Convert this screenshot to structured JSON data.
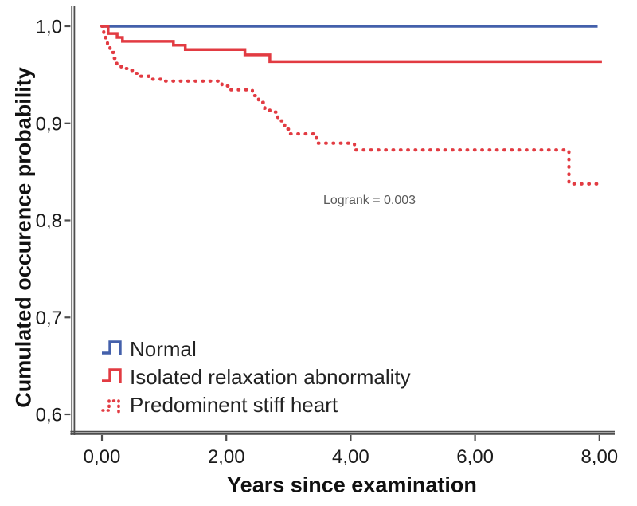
{
  "chart_data": {
    "type": "line",
    "subtype": "kaplan-meier-step",
    "title": "",
    "xlabel": "Years since examination",
    "ylabel": "Cumulated occurence probability",
    "annotation": "Logrank = 0.003",
    "grid": false,
    "legend_position": "lower-left",
    "xlim": [
      -0.45,
      8.25
    ],
    "ylim": [
      0.58,
      1.02
    ],
    "x_ticks": {
      "values": [
        0,
        2,
        4,
        6,
        8
      ],
      "labels": [
        "0,00",
        "2,00",
        "4,00",
        "6,00",
        "8,00"
      ]
    },
    "y_ticks": {
      "values": [
        1.0,
        0.9,
        0.8,
        0.7,
        0.6
      ],
      "labels": [
        "1,0",
        "0,9",
        "0,8",
        "0,7",
        "0,6"
      ]
    },
    "colors": {
      "normal": "#4460ab",
      "abnormal": "#e23b42",
      "axis": "#4d4d4d",
      "text": "#1a1a1a",
      "annotation": "#5a5a5a"
    },
    "series": [
      {
        "id": "normal",
        "name": "Normal",
        "style": "solid",
        "color_key": "normal",
        "steps": [
          [
            0,
            1.0
          ],
          [
            7.97,
            1.0
          ]
        ]
      },
      {
        "id": "isolated-relaxation-abnormality",
        "name": "Isolated relaxation abnormality",
        "style": "solid",
        "color_key": "abnormal",
        "steps": [
          [
            0,
            1.0
          ],
          [
            0.1,
            0.9925
          ],
          [
            0.245,
            0.9885
          ],
          [
            0.33,
            0.9845
          ],
          [
            1.15,
            0.9805
          ],
          [
            1.34,
            0.976
          ],
          [
            2.3,
            0.9705
          ],
          [
            2.7,
            0.9635
          ],
          [
            8.04,
            0.9635
          ]
        ]
      },
      {
        "id": "predominent-stiff-heart",
        "name": "Predominent stiff heart",
        "style": "dotted",
        "color_key": "abnormal",
        "steps": [
          [
            0,
            1.0
          ],
          [
            0.03,
            0.993
          ],
          [
            0.06,
            0.986
          ],
          [
            0.09,
            0.979
          ],
          [
            0.13,
            0.973
          ],
          [
            0.18,
            0.967
          ],
          [
            0.24,
            0.961
          ],
          [
            0.31,
            0.9565
          ],
          [
            0.42,
            0.9545
          ],
          [
            0.52,
            0.9515
          ],
          [
            0.62,
            0.9485
          ],
          [
            0.75,
            0.9455
          ],
          [
            0.95,
            0.9435
          ],
          [
            1.93,
            0.9385
          ],
          [
            2.05,
            0.9345
          ],
          [
            2.42,
            0.9285
          ],
          [
            2.52,
            0.9215
          ],
          [
            2.62,
            0.9155
          ],
          [
            2.7,
            0.9115
          ],
          [
            2.83,
            0.9025
          ],
          [
            2.94,
            0.894
          ],
          [
            3.02,
            0.889
          ],
          [
            3.45,
            0.8795
          ],
          [
            4.06,
            0.8725
          ],
          [
            7.51,
            0.8375
          ],
          [
            8.04,
            0.8375
          ]
        ]
      }
    ]
  }
}
